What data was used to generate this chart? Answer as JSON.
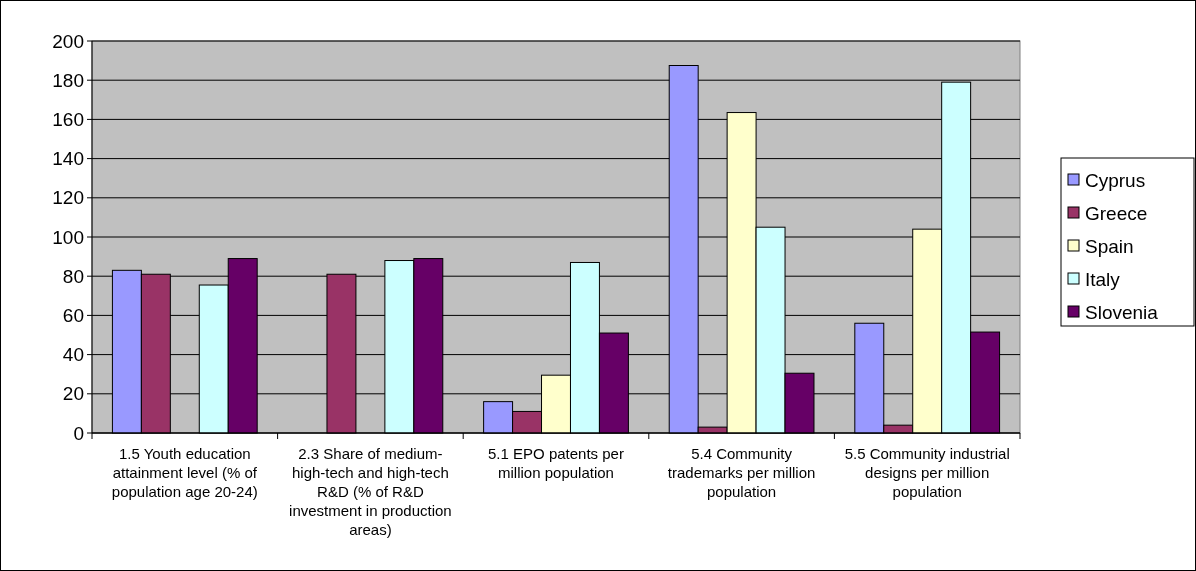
{
  "chart_data": {
    "type": "bar",
    "categories": [
      "1.5 Youth education attainment level (% of population age 20-24)",
      "2.3 Share of medium-high-tech and high-tech R&D (% of R&D investment in production areas)",
      "5.1 EPO patents per million population",
      "5.4 Community trademarks per million population",
      "5.5 Community industrial designs per million population"
    ],
    "series": [
      {
        "name": "Cyprus",
        "color": "#9999ff",
        "values": [
          83,
          null,
          16,
          187.5,
          56
        ]
      },
      {
        "name": "Greece",
        "color": "#993366",
        "values": [
          81,
          81,
          11,
          3,
          4
        ]
      },
      {
        "name": "Spain",
        "color": "#ffffcc",
        "values": [
          null,
          null,
          29.5,
          163.5,
          104
        ]
      },
      {
        "name": "Italy",
        "color": "#ccffff",
        "values": [
          75.5,
          88,
          87,
          105,
          179
        ]
      },
      {
        "name": "Slovenia",
        "color": "#660066",
        "values": [
          89,
          89,
          51,
          30.5,
          51.5
        ]
      }
    ],
    "ylim": [
      0,
      200
    ],
    "yticks": [
      0,
      20,
      40,
      60,
      80,
      100,
      120,
      140,
      160,
      180,
      200
    ],
    "grid": "y",
    "legend": "right"
  }
}
